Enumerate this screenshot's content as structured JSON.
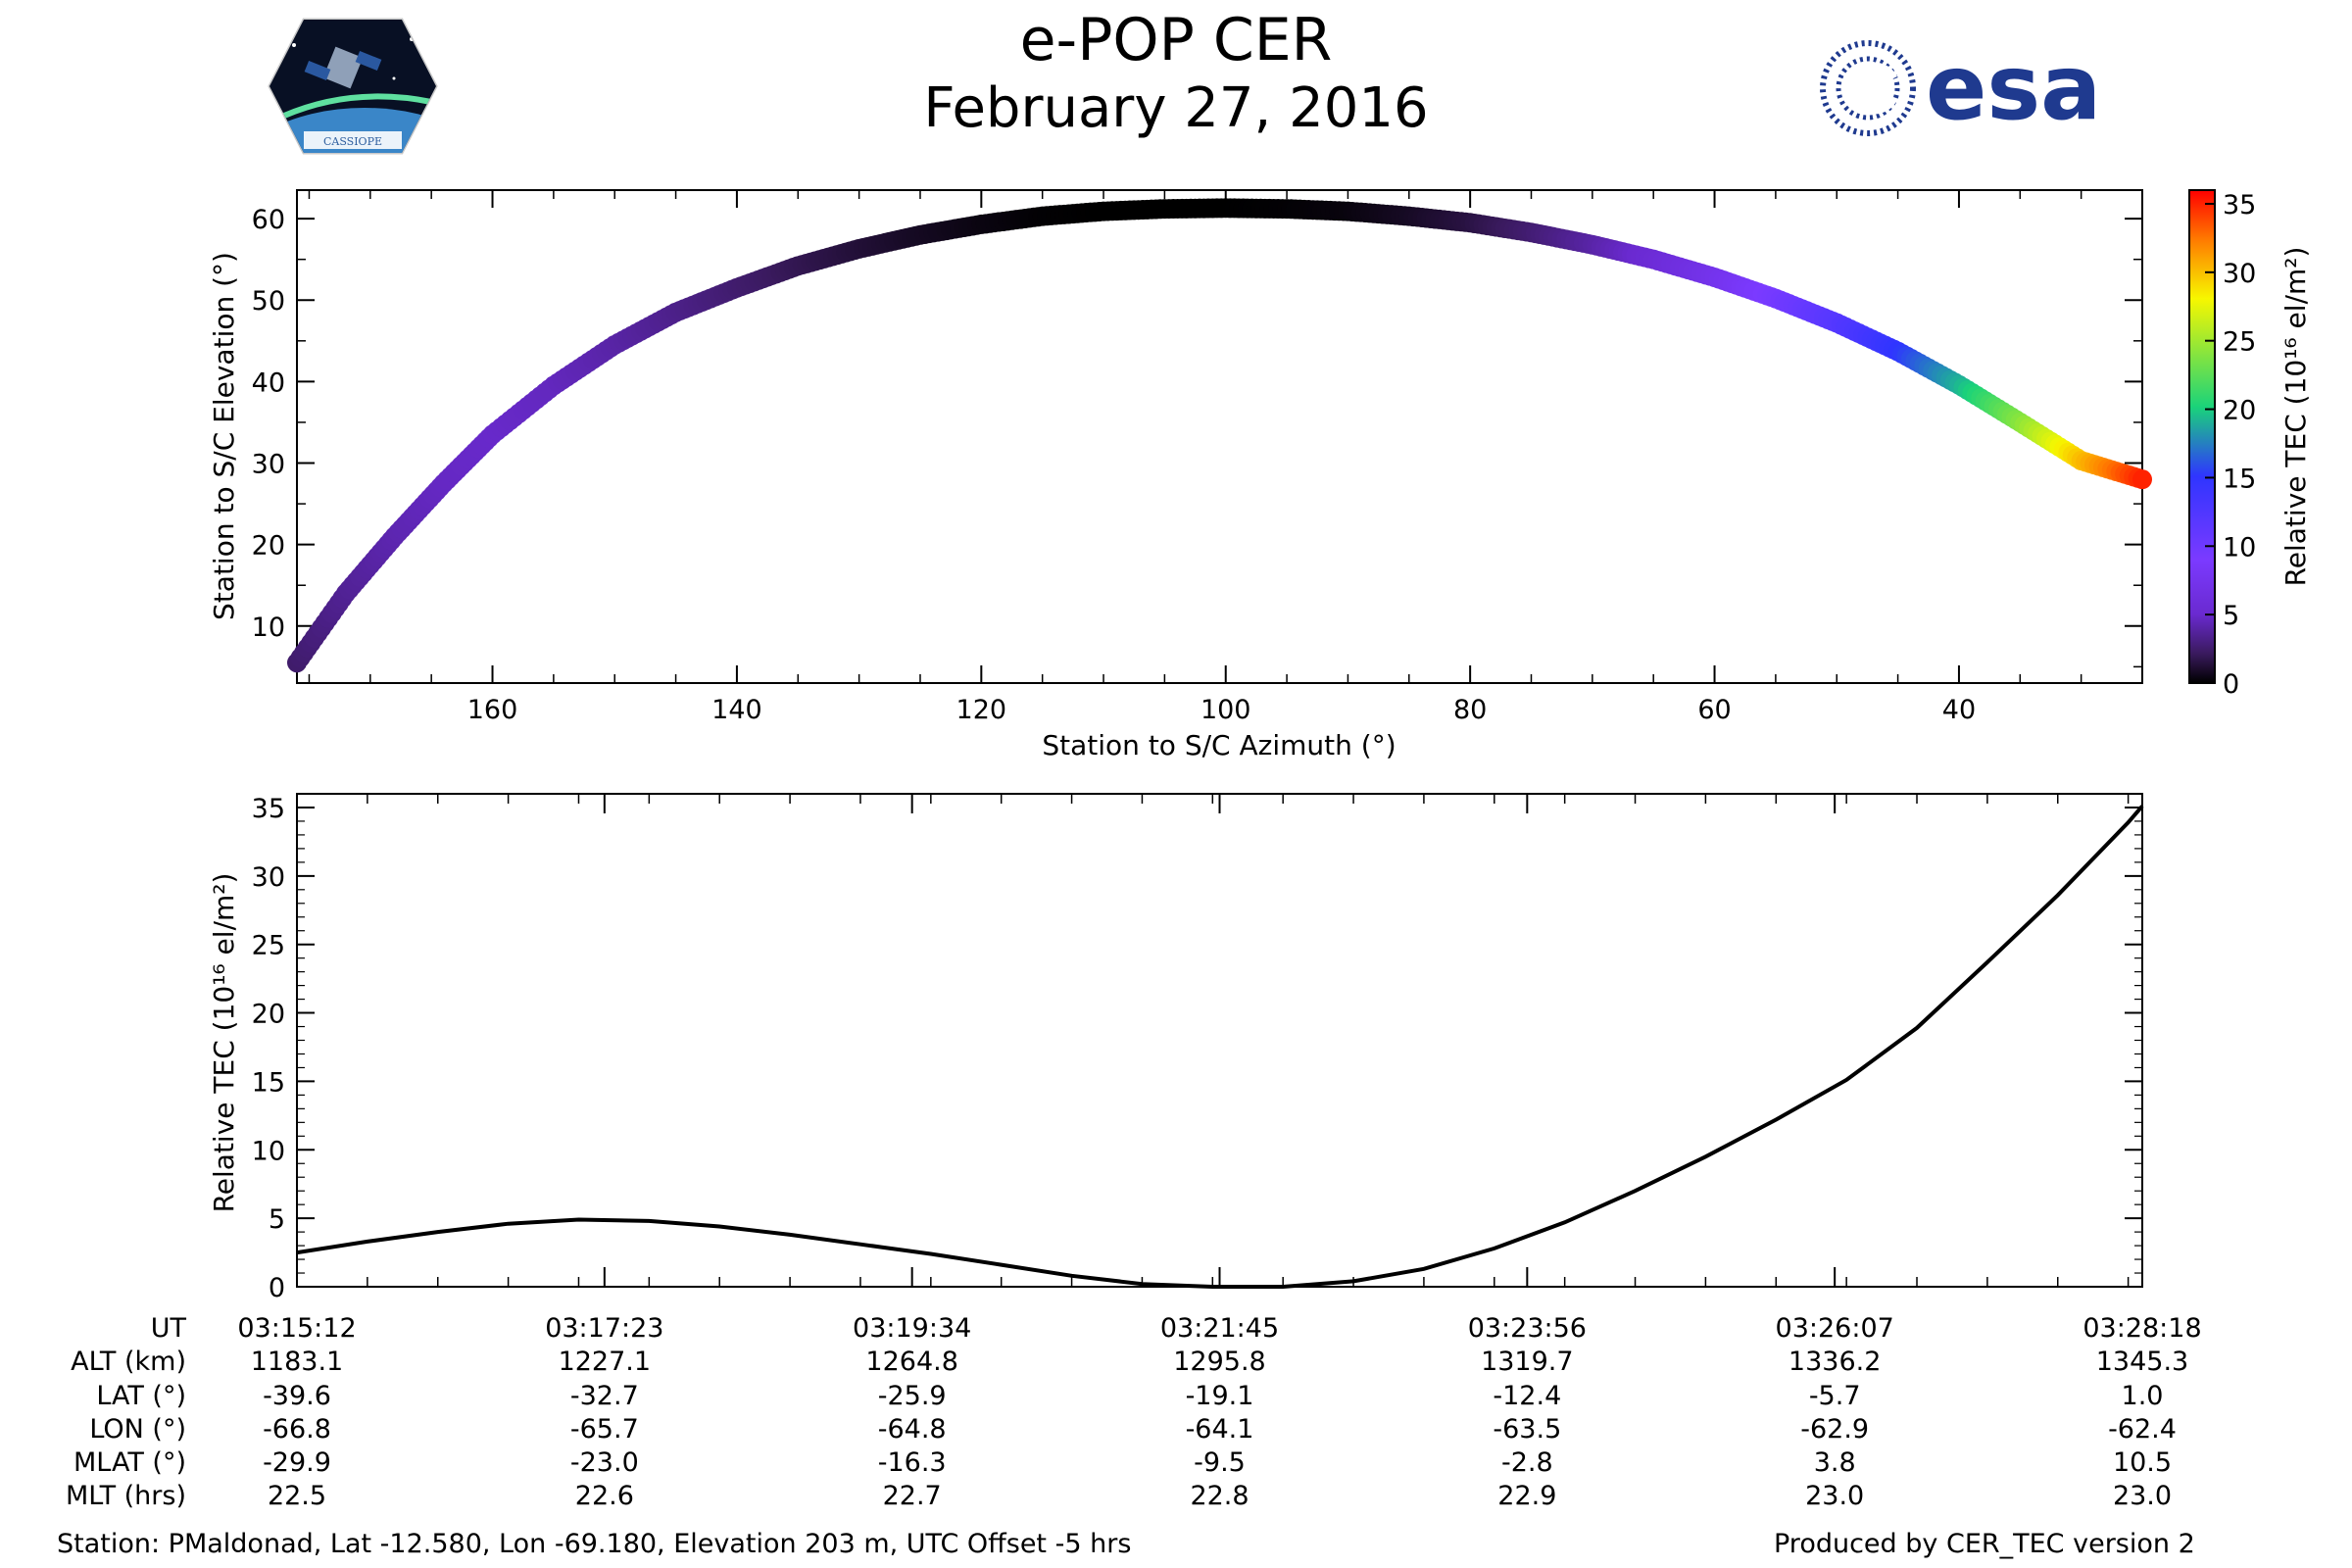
{
  "header": {
    "title": "e-POP CER",
    "date": "February 27, 2016",
    "left_logo_text": "CASSIOPE",
    "right_logo_text": "esa"
  },
  "colors": {
    "esa_blue": "#1f3a8f",
    "curve": "#000000",
    "colormap": [
      "#000000",
      "#3a1a5e",
      "#6a2ad0",
      "#7b3aff",
      "#2f35ff",
      "#1ad37a",
      "#f7f700",
      "#ff7a00",
      "#ff0000"
    ]
  },
  "chart_data": [
    {
      "type": "scatter",
      "xlabel": "Station to S/C Azimuth (°)",
      "ylabel": "Station to S/C Elevation (°)",
      "xlim": [
        176,
        25
      ],
      "ylim": [
        3,
        63.5
      ],
      "x_ticks": [
        160,
        140,
        120,
        100,
        80,
        60,
        40
      ],
      "y_ticks": [
        10,
        20,
        30,
        40,
        50,
        60
      ],
      "color_by": "Relative TEC",
      "points": {
        "azimuth": [
          176,
          172,
          168,
          164,
          160,
          155,
          150,
          145,
          140,
          135,
          130,
          125,
          120,
          115,
          110,
          105,
          100,
          95,
          90,
          85,
          80,
          75,
          70,
          65,
          60,
          55,
          50,
          45,
          40,
          35,
          30,
          25
        ],
        "elevation": [
          5.5,
          14,
          21,
          27.5,
          33.5,
          39.5,
          44.5,
          48.5,
          51.5,
          54.2,
          56.3,
          58,
          59.3,
          60.3,
          60.9,
          61.2,
          61.3,
          61.2,
          60.9,
          60.3,
          59.5,
          58.3,
          56.8,
          55,
          52.8,
          50.2,
          47.2,
          43.7,
          39.6,
          35,
          30.3,
          28
        ],
        "tec": [
          2.5,
          3.5,
          4.2,
          4.7,
          4.9,
          4.6,
          4.0,
          3.3,
          2.6,
          1.9,
          1.3,
          0.8,
          0.4,
          0.1,
          0.0,
          0.0,
          0.0,
          0.1,
          0.3,
          0.8,
          1.5,
          2.6,
          3.9,
          5.5,
          7.3,
          9.5,
          12,
          15,
          19,
          24,
          30,
          35
        ]
      },
      "colorbar": {
        "label": "Relative TEC (10¹⁶ el/m²)",
        "range": [
          0,
          36
        ],
        "ticks": [
          0,
          5,
          10,
          15,
          20,
          25,
          30,
          35
        ]
      }
    },
    {
      "type": "line",
      "ylabel": "Relative TEC (10¹⁶ el/m²)",
      "ylim": [
        0,
        36
      ],
      "y_ticks": [
        0,
        5,
        10,
        15,
        20,
        25,
        30,
        35
      ],
      "x_minutes": [
        0,
        0.5,
        1,
        1.5,
        2,
        2.5,
        3,
        3.5,
        4,
        4.5,
        5,
        5.5,
        6,
        6.5,
        7,
        7.5,
        8,
        8.5,
        9,
        9.5,
        10,
        10.5,
        11,
        11.5,
        12,
        12.5,
        13,
        13.1
      ],
      "values": [
        2.5,
        3.3,
        4.0,
        4.6,
        4.9,
        4.8,
        4.4,
        3.8,
        3.1,
        2.4,
        1.6,
        0.8,
        0.2,
        0.0,
        0.0,
        0.4,
        1.3,
        2.8,
        4.7,
        7.0,
        9.5,
        12.2,
        15.1,
        18.9,
        23.7,
        28.6,
        33.9,
        35.1
      ]
    }
  ],
  "orbit_table": {
    "row_labels": [
      "UT",
      "ALT (km)",
      "LAT (°)",
      "LON (°)",
      "MLAT (°)",
      "MLT (hrs)"
    ],
    "columns": [
      [
        "03:15:12",
        "1183.1",
        "-39.6",
        "-66.8",
        "-29.9",
        "22.5"
      ],
      [
        "03:17:23",
        "1227.1",
        "-32.7",
        "-65.7",
        "-23.0",
        "22.6"
      ],
      [
        "03:19:34",
        "1264.8",
        "-25.9",
        "-64.8",
        "-16.3",
        "22.7"
      ],
      [
        "03:21:45",
        "1295.8",
        "-19.1",
        "-64.1",
        "-9.5",
        "22.8"
      ],
      [
        "03:23:56",
        "1319.7",
        "-12.4",
        "-63.5",
        "-2.8",
        "22.9"
      ],
      [
        "03:26:07",
        "1336.2",
        "-5.7",
        "-62.9",
        "3.8",
        "23.0"
      ],
      [
        "03:28:18",
        "1345.3",
        "1.0",
        "-62.4",
        "10.5",
        "23.0"
      ]
    ]
  },
  "footer": {
    "station": "Station: PMaldonad, Lat -12.580, Lon -69.180, Elevation 203 m, UTC Offset -5 hrs",
    "produced": "Produced by CER_TEC version 2"
  }
}
